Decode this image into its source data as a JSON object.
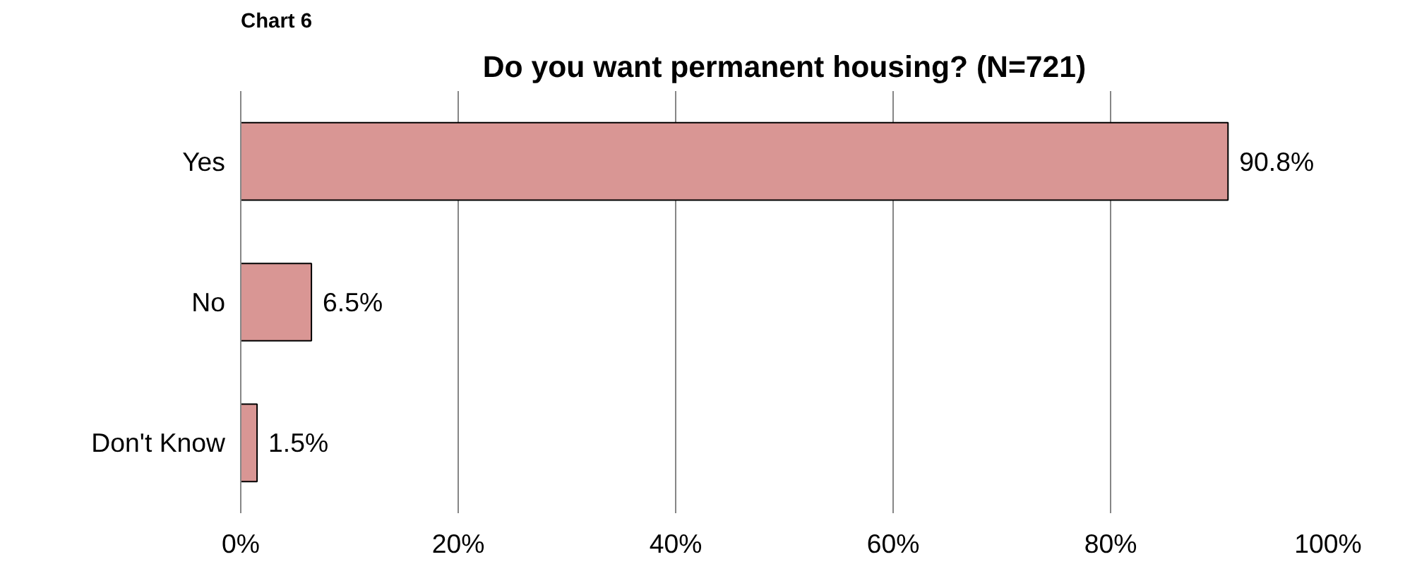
{
  "chart_data": {
    "type": "bar",
    "orientation": "horizontal",
    "title": "Do you want permanent housing? (N=721)",
    "annotations": [
      "Chart 6"
    ],
    "categories": [
      "Yes",
      "No",
      "Don't Know"
    ],
    "values": [
      90.8,
      6.5,
      1.5
    ],
    "value_labels": [
      "90.8%",
      "6.5%",
      "1.5%"
    ],
    "color": "#d99694",
    "xlim": [
      0,
      100
    ],
    "xticks": [
      {
        "value": 0,
        "label": "0%"
      },
      {
        "value": 20,
        "label": "20%"
      },
      {
        "value": 40,
        "label": "40%"
      },
      {
        "value": 60,
        "label": "60%"
      },
      {
        "value": 80,
        "label": "80%"
      },
      {
        "value": 100,
        "label": "100%"
      }
    ],
    "grid": "x"
  }
}
